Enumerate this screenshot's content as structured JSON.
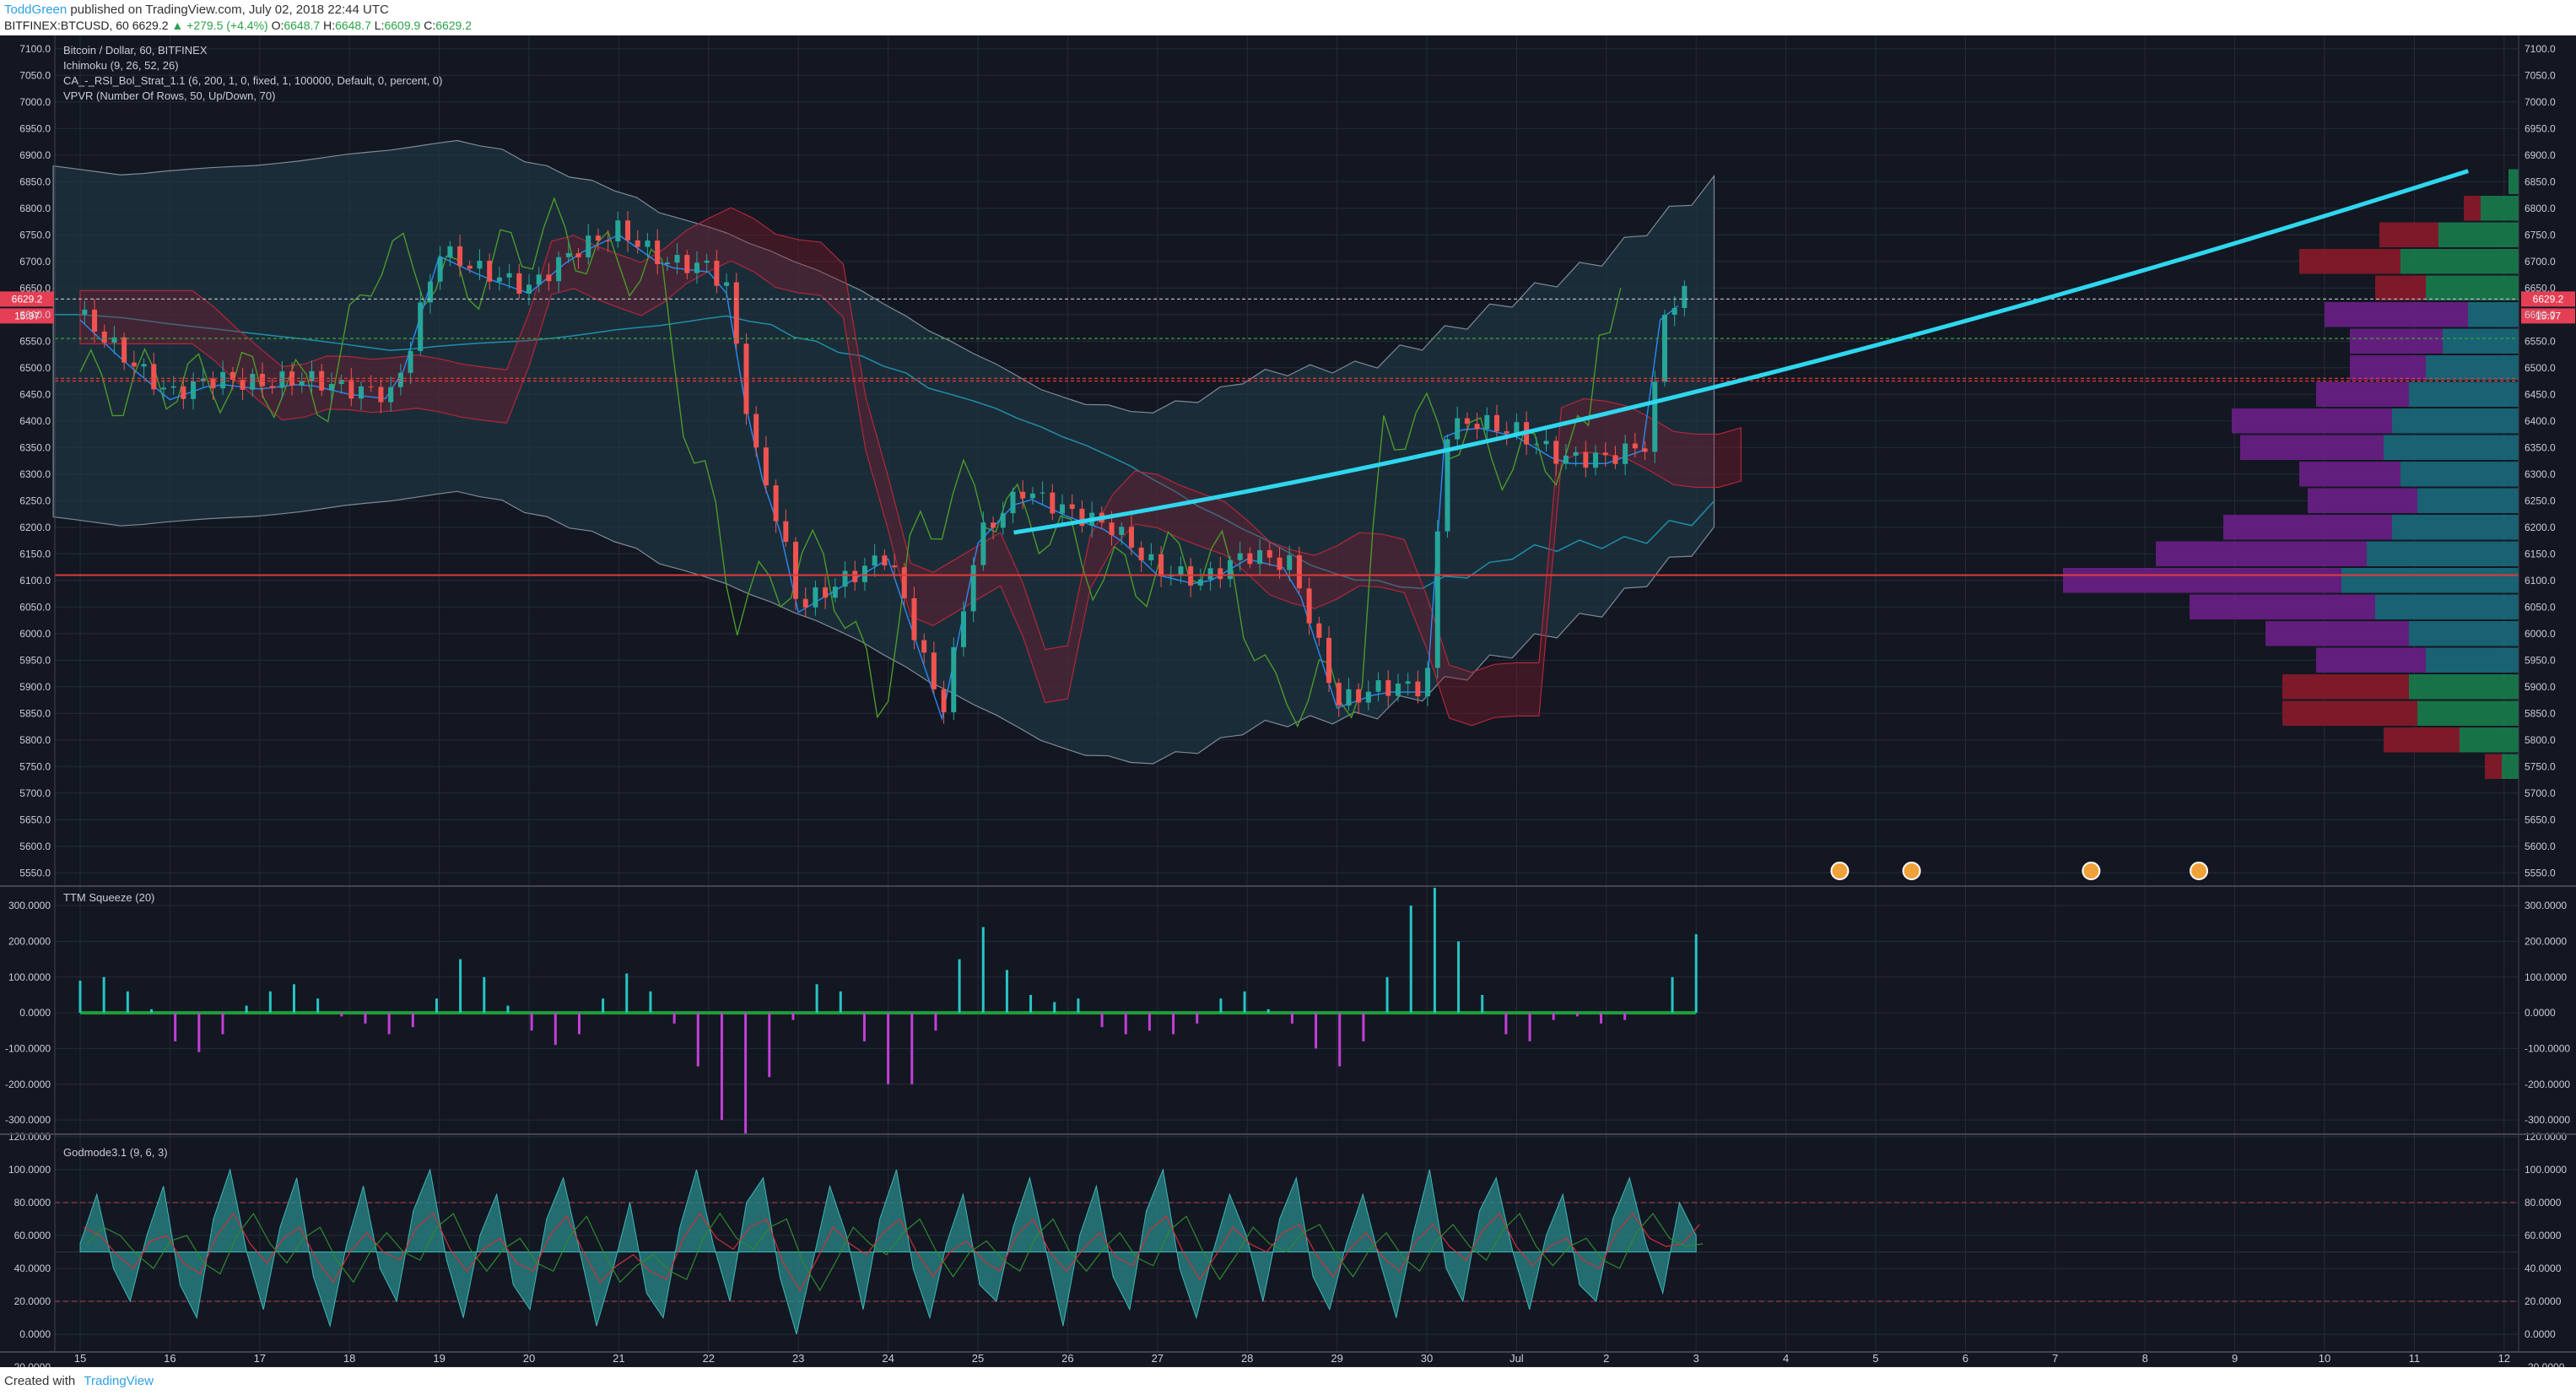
{
  "header": {
    "author": "ToddGreen",
    "published": "published on TradingView.com, July 02, 2018 22:44 UTC",
    "symbol": "BITFINEX:BTCUSD, 60",
    "last": "6629.2",
    "change": "▲ +279.5 (+4.4%)",
    "o_label": "O:",
    "o": "6648.7",
    "h_label": "H:",
    "h": "6648.7",
    "l_label": "L:",
    "l": "6609.9",
    "c_label": "C:",
    "c": "6629.2"
  },
  "legend": {
    "main": "Bitcoin / Dollar, 60, BITFINEX",
    "ind1": "Ichimoku (9, 26, 52, 26)",
    "ind2": "CA_-_RSI_Bol_Strat_1.1 (6, 200, 1, 0, fixed, 1, 100000, Default, 0, percent, 0)",
    "ind3": "VPVR (Number Of Rows, 50, Up/Down, 70)",
    "ttm": "TTM Squeeze (20)",
    "godmode": "Godmode3.1 (9, 6, 3)"
  },
  "footer": {
    "created_with": "Created with",
    "brand": "TradingView"
  },
  "colors": {
    "background": "#131722",
    "grid": "#262b3a",
    "up": "#26a69a",
    "down": "#ef5350",
    "trend": "#2fd7ee",
    "vp_up": "#1a7c4d",
    "vp_down": "#8b1a2a",
    "vp_purple": "#6b1f86",
    "vp_teal": "#1a6a7c"
  },
  "chart_data": [
    {
      "type": "line",
      "panel": "price",
      "x_axis_ticks": [
        "15",
        "16",
        "17",
        "18",
        "19",
        "20",
        "21",
        "22",
        "23",
        "24",
        "25",
        "26",
        "27",
        "28",
        "29",
        "30",
        "Jul",
        "2",
        "3",
        "4",
        "5",
        "6",
        "7",
        "8",
        "9",
        "10",
        "11",
        "12"
      ],
      "ylim": [
        5525,
        7125
      ],
      "y_ticks": [
        "7100.0",
        "7050.0",
        "7000.0",
        "6950.0",
        "6900.0",
        "6850.0",
        "6800.0",
        "6750.0",
        "6700.0",
        "6650.0",
        "6600.0",
        "6550.0",
        "6500.0",
        "6450.0",
        "6400.0",
        "6350.0",
        "6300.0",
        "6250.0",
        "6200.0",
        "6150.0",
        "6100.0",
        "6050.0",
        "6000.0",
        "5950.0",
        "5900.0",
        "5850.0",
        "5800.0",
        "5750.0",
        "5700.0",
        "5650.0",
        "5600.0",
        "5550.0"
      ],
      "price_label": "6629.2",
      "countdown_label": "15:97",
      "series": [
        {
          "values": [
            [
              0,
              6600
            ],
            [
              0.5,
              6520
            ],
            [
              1,
              6450
            ],
            [
              1.5,
              6480
            ],
            [
              2,
              6470
            ],
            [
              2.5,
              6480
            ],
            [
              3,
              6460
            ],
            [
              3.5,
              6450
            ],
            [
              4,
              6720
            ],
            [
              4.5,
              6680
            ],
            [
              5,
              6650
            ],
            [
              5.5,
              6720
            ],
            [
              6,
              6760
            ],
            [
              6.5,
              6700
            ],
            [
              7,
              6690
            ],
            [
              7.2,
              6650
            ],
            [
              7.5,
              6350
            ],
            [
              7.8,
              6200
            ],
            [
              8,
              6050
            ],
            [
              8.5,
              6100
            ],
            [
              9,
              6150
            ],
            [
              9.3,
              6000
            ],
            [
              9.6,
              5850
            ],
            [
              10,
              6180
            ],
            [
              10.5,
              6270
            ],
            [
              11,
              6230
            ],
            [
              11.5,
              6200
            ],
            [
              12,
              6120
            ],
            [
              12.5,
              6100
            ],
            [
              13,
              6150
            ],
            [
              13.5,
              6130
            ],
            [
              14,
              5870
            ],
            [
              14.5,
              5900
            ],
            [
              15,
              5900
            ],
            [
              15.2,
              6380
            ],
            [
              15.5,
              6400
            ],
            [
              16,
              6380
            ],
            [
              16.5,
              6330
            ],
            [
              17,
              6330
            ],
            [
              17.5,
              6360
            ],
            [
              17.6,
              6600
            ],
            [
              17.9,
              6640
            ]
          ]
        }
      ],
      "horizontal_lines": [
        6629.2,
        6555,
        6480,
        6475,
        6110
      ],
      "trend_line": [
        [
          10.4,
          6190
        ],
        [
          17.5,
          6400
        ],
        [
          26.6,
          6870
        ]
      ],
      "volume_profile": [
        {
          "price": 6850,
          "up": 12,
          "down": 0
        },
        {
          "price": 6800,
          "up": 45,
          "down": 20
        },
        {
          "price": 6750,
          "up": 95,
          "down": 70
        },
        {
          "price": 6700,
          "up": 140,
          "down": 120
        },
        {
          "price": 6650,
          "up": 110,
          "down": 60
        },
        {
          "price": 6600,
          "up": 60,
          "down": 170
        },
        {
          "price": 6550,
          "up": 90,
          "down": 110
        },
        {
          "price": 6500,
          "up": 110,
          "down": 90
        },
        {
          "price": 6450,
          "up": 130,
          "down": 110
        },
        {
          "price": 6400,
          "up": 150,
          "down": 190
        },
        {
          "price": 6350,
          "up": 160,
          "down": 170
        },
        {
          "price": 6300,
          "up": 140,
          "down": 120
        },
        {
          "price": 6250,
          "up": 120,
          "down": 130
        },
        {
          "price": 6200,
          "up": 150,
          "down": 200
        },
        {
          "price": 6150,
          "up": 180,
          "down": 250
        },
        {
          "price": 6100,
          "up": 210,
          "down": 330
        },
        {
          "price": 6050,
          "up": 170,
          "down": 220
        },
        {
          "price": 6000,
          "up": 130,
          "down": 170
        },
        {
          "price": 5950,
          "up": 110,
          "down": 130
        },
        {
          "price": 5900,
          "up": 130,
          "down": 150
        },
        {
          "price": 5850,
          "up": 120,
          "down": 160
        },
        {
          "price": 5800,
          "up": 70,
          "down": 90
        },
        {
          "price": 5750,
          "up": 20,
          "down": 20
        }
      ]
    },
    {
      "type": "bar",
      "panel": "ttm",
      "title": "TTM Squeeze (20)",
      "ylim": [
        -340,
        350
      ],
      "y_ticks": [
        "300.0000",
        "200.0000",
        "100.0000",
        "0.0000",
        "-100.0000",
        "-200.0000",
        "-300.0000"
      ],
      "values": [
        90,
        100,
        60,
        10,
        -80,
        -110,
        -60,
        20,
        60,
        80,
        40,
        -10,
        -30,
        -60,
        -40,
        40,
        150,
        100,
        20,
        -50,
        -90,
        -60,
        40,
        110,
        60,
        -30,
        -150,
        -300,
        -340,
        -180,
        -20,
        80,
        60,
        -80,
        -200,
        -200,
        -50,
        150,
        240,
        120,
        50,
        30,
        40,
        -40,
        -60,
        -50,
        -60,
        -30,
        40,
        60,
        10,
        -30,
        -100,
        -150,
        -80,
        100,
        300,
        350,
        200,
        50,
        -60,
        -80,
        -20,
        -10,
        -30,
        -20,
        0,
        100,
        220
      ]
    },
    {
      "type": "area",
      "panel": "godmode",
      "title": "Godmode3.1 (9, 6, 3)",
      "ylim": [
        -20,
        120
      ],
      "y_ticks": [
        "120.0000",
        "100.0000",
        "80.0000",
        "60.0000",
        "40.0000",
        "20.0000",
        "0.0000",
        "-20.0000"
      ],
      "guide_lines": [
        80,
        20
      ],
      "values": [
        55,
        85,
        40,
        20,
        60,
        90,
        30,
        10,
        70,
        100,
        50,
        15,
        65,
        95,
        35,
        5,
        55,
        90,
        40,
        20,
        75,
        100,
        45,
        10,
        60,
        85,
        30,
        15,
        70,
        95,
        50,
        5,
        40,
        80,
        25,
        10,
        65,
        100,
        55,
        20,
        80,
        95,
        35,
        0,
        45,
        90,
        60,
        15,
        70,
        100,
        40,
        10,
        55,
        85,
        30,
        20,
        65,
        95,
        50,
        5,
        60,
        90,
        35,
        15,
        75,
        100,
        40,
        10,
        50,
        85,
        60,
        20,
        70,
        95,
        35,
        15,
        55,
        85,
        45,
        10,
        60,
        100,
        40,
        20,
        75,
        95,
        50,
        15,
        60,
        85,
        30,
        20,
        70,
        95,
        55,
        25,
        80,
        60
      ]
    }
  ]
}
